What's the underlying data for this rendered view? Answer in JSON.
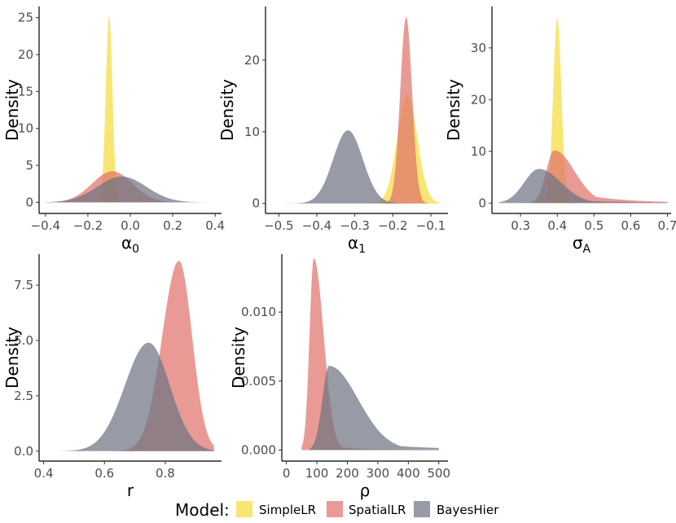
{
  "chart_data": [
    {
      "type": "area",
      "id": "alpha0",
      "xlabel": "α",
      "xlabel_sub": "0",
      "ylabel": "Density",
      "xlim": [
        -0.43,
        0.43
      ],
      "ylim": [
        -1.5,
        26.5
      ],
      "xticks": [
        -0.4,
        -0.2,
        0.0,
        0.2,
        0.4
      ],
      "xtick_labels": [
        "−0.4",
        "−0.2",
        "0.0",
        "0.2",
        "0.4"
      ],
      "yticks": [
        0,
        5,
        10,
        15,
        20,
        25
      ],
      "ytick_labels": [
        "0",
        "5",
        "10",
        "15",
        "20",
        "25"
      ],
      "series": [
        {
          "name": "SimpleLR",
          "type": "normal",
          "mean": -0.1,
          "sd": 0.0158,
          "peak": 25.2,
          "range": [
            -0.2,
            0.0
          ]
        },
        {
          "name": "SpatialLR",
          "type": "normal",
          "mean": -0.085,
          "sd": 0.095,
          "peak": 4.2,
          "range": [
            -0.4,
            0.4
          ]
        },
        {
          "name": "BayesHier",
          "type": "normal",
          "mean": -0.04,
          "sd": 0.115,
          "peak": 3.5,
          "range": [
            -0.4,
            0.4
          ]
        }
      ]
    },
    {
      "type": "area",
      "id": "alpha1",
      "xlabel": "α",
      "xlabel_sub": "1",
      "ylabel": "Density",
      "xlim": [
        -0.535,
        -0.055
      ],
      "ylim": [
        -1.4,
        27.5
      ],
      "xticks": [
        -0.5,
        -0.4,
        -0.3,
        -0.2,
        -0.1
      ],
      "xtick_labels": [
        "−0.5",
        "−0.4",
        "−0.3",
        "−0.2",
        "−0.1"
      ],
      "yticks": [
        0,
        10,
        20
      ],
      "ytick_labels": [
        "0",
        "10",
        "20"
      ],
      "series": [
        {
          "name": "SimpleLR",
          "type": "normal",
          "mean": -0.162,
          "sd": 0.0265,
          "peak": 15.1,
          "range": [
            -0.27,
            -0.07
          ]
        },
        {
          "name": "SpatialLR",
          "type": "normal",
          "mean": -0.165,
          "sd": 0.0155,
          "peak": 26.0,
          "range": [
            -0.23,
            -0.1
          ]
        },
        {
          "name": "BayesHier",
          "type": "normal",
          "mean": -0.318,
          "sd": 0.039,
          "peak": 10.2,
          "range": [
            -0.5,
            -0.14
          ]
        }
      ]
    },
    {
      "type": "area",
      "id": "sigmaA",
      "xlabel": "σ",
      "xlabel_sub": "A",
      "ylabel": "Density",
      "xlim": [
        0.222,
        0.71
      ],
      "ylim": [
        -2.0,
        38.0
      ],
      "xticks": [
        0.3,
        0.4,
        0.5,
        0.6,
        0.7
      ],
      "xtick_labels": [
        "0.3",
        "0.4",
        "0.5",
        "0.6",
        "0.7"
      ],
      "yticks": [
        0,
        10,
        20,
        30
      ],
      "ytick_labels": [
        "0",
        "10",
        "20",
        "30"
      ],
      "series": [
        {
          "name": "SimpleLR",
          "type": "normal",
          "mean": 0.4,
          "sd": 0.0112,
          "peak": 35.8,
          "range": [
            0.35,
            0.45
          ]
        },
        {
          "name": "SpatialLR",
          "type": "skew",
          "mode": 0.392,
          "sl": 0.022,
          "sr": 0.055,
          "tail": 0.3,
          "tailscale": 0.12,
          "peak": 10.2,
          "range": [
            0.3,
            0.7
          ]
        },
        {
          "name": "BayesHier",
          "type": "skew",
          "mode": 0.35,
          "sl": 0.04,
          "sr": 0.06,
          "tail": 0.2,
          "tailscale": 0.12,
          "peak": 6.6,
          "range": [
            0.24,
            0.7
          ]
        }
      ]
    },
    {
      "type": "area",
      "id": "r",
      "xlabel": "r",
      "xlabel_sub": "",
      "ylabel": "Density",
      "xlim": [
        0.385,
        0.985
      ],
      "ylim": [
        -0.45,
        8.9
      ],
      "xticks": [
        0.4,
        0.6,
        0.8
      ],
      "xtick_labels": [
        "0.4",
        "0.6",
        "0.8"
      ],
      "yticks": [
        0.0,
        2.5,
        5.0,
        7.5
      ],
      "ytick_labels": [
        "0.0",
        "2.5",
        "5.0",
        "7.5"
      ],
      "series": [
        {
          "name": "SpatialLR",
          "type": "skew",
          "mode": 0.845,
          "sl": 0.055,
          "sr": 0.043,
          "peak": 8.6,
          "range": [
            0.6,
            0.96
          ]
        },
        {
          "name": "BayesHier",
          "type": "skew",
          "mode": 0.745,
          "sl": 0.078,
          "sr": 0.07,
          "peak": 4.9,
          "range": [
            0.42,
            0.96
          ]
        }
      ]
    },
    {
      "type": "area",
      "id": "rho",
      "xlabel": "ρ",
      "xlabel_sub": "",
      "ylabel": "Density",
      "xlim": [
        -15,
        530
      ],
      "ylim": [
        -0.0008,
        0.0142
      ],
      "xticks": [
        0,
        100,
        200,
        300,
        400,
        500
      ],
      "xtick_labels": [
        "0",
        "100",
        "200",
        "300",
        "400",
        "500"
      ],
      "yticks": [
        0.0,
        0.005,
        0.01
      ],
      "ytick_labels": [
        "0.000",
        "0.005",
        "0.010"
      ],
      "series": [
        {
          "name": "SpatialLR",
          "type": "skew",
          "mode": 90,
          "sl": 14,
          "sr": 32,
          "tail": 0.04,
          "tailscale": 90,
          "peak": 0.0139,
          "range": [
            50,
            500
          ]
        },
        {
          "name": "BayesHier",
          "type": "skew",
          "mode": 140,
          "sl": 22,
          "sr": 95,
          "tail": 0.15,
          "tailscale": 200,
          "peak": 0.0061,
          "range": [
            75,
            500
          ]
        }
      ]
    }
  ],
  "legend": {
    "title": "Model:",
    "items": [
      {
        "name": "SimpleLR",
        "label": "SimpleLR"
      },
      {
        "name": "SpatialLR",
        "label": "SpatialLR"
      },
      {
        "name": "BayesHier",
        "label": "BayesHier"
      }
    ]
  },
  "colors": {
    "SimpleLR": "#F5DD3C",
    "SpatialLR": "#E0736B",
    "BayesHier": "#6E7482"
  },
  "fill_opacity": 0.72
}
